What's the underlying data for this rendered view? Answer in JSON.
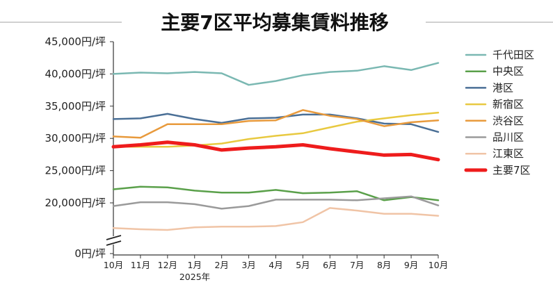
{
  "chart_data": {
    "type": "line",
    "title": "主要7区平均募集賃料推移",
    "xlabel": "",
    "ylabel": "",
    "categories": [
      "10月",
      "11月",
      "12月",
      "1月",
      "2月",
      "3月",
      "4月",
      "5月",
      "6月",
      "7月",
      "8月",
      "9月",
      "10月"
    ],
    "year_label": "2025年",
    "y_ticks": [
      {
        "value": 45000,
        "label": "45,000円/坪"
      },
      {
        "value": 40000,
        "label": "40,000円/坪"
      },
      {
        "value": 35000,
        "label": "35,000円/坪"
      },
      {
        "value": 30000,
        "label": "30,000円/坪"
      },
      {
        "value": 25000,
        "label": "25,000円/坪"
      },
      {
        "value": 20000,
        "label": "20,000円/坪"
      },
      {
        "value": 0,
        "label": "0円/坪"
      }
    ],
    "axis_break": true,
    "ylim": [
      0,
      45000
    ],
    "grid": false,
    "legend_position": "right",
    "series": [
      {
        "name": "千代田区",
        "color": "#7ab8b2",
        "width": 2.5,
        "values": [
          40000,
          40200,
          40100,
          40300,
          40100,
          38300,
          38900,
          39800,
          40300,
          40500,
          41200,
          40600,
          41700
        ]
      },
      {
        "name": "中央区",
        "color": "#5aa04a",
        "width": 2.5,
        "values": [
          22100,
          22500,
          22400,
          21900,
          21600,
          21600,
          22000,
          21500,
          21600,
          21800,
          20400,
          20900,
          20400
        ]
      },
      {
        "name": "港区",
        "color": "#4a6f96",
        "width": 2.5,
        "values": [
          33000,
          33100,
          33800,
          33000,
          32400,
          33100,
          33200,
          33700,
          33700,
          33100,
          32300,
          32200,
          31000
        ]
      },
      {
        "name": "新宿区",
        "color": "#e8c940",
        "width": 2.5,
        "values": [
          28700,
          28700,
          28700,
          28900,
          29200,
          29900,
          30400,
          30800,
          31700,
          32600,
          33100,
          33600,
          34000
        ]
      },
      {
        "name": "渋谷区",
        "color": "#e89a3c",
        "width": 2.5,
        "values": [
          30300,
          30100,
          32200,
          32200,
          32200,
          32700,
          32800,
          34400,
          33500,
          33000,
          31900,
          32500,
          32800
        ]
      },
      {
        "name": "品川区",
        "color": "#9a9a9a",
        "width": 2.5,
        "values": [
          19500,
          20100,
          20100,
          19800,
          19100,
          19500,
          20500,
          20500,
          20500,
          20400,
          20700,
          21000,
          19600
        ]
      },
      {
        "name": "江東区",
        "color": "#f0c4a6",
        "width": 2.5,
        "values": [
          16100,
          15900,
          15800,
          16200,
          16300,
          16300,
          16400,
          17000,
          19200,
          18800,
          18300,
          18300,
          18000
        ]
      },
      {
        "name": "主要7区",
        "color": "#ee1c1c",
        "width": 5,
        "values": [
          28700,
          29000,
          29400,
          29000,
          28200,
          28500,
          28700,
          29000,
          28400,
          27900,
          27400,
          27500,
          26700
        ]
      }
    ]
  }
}
